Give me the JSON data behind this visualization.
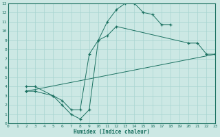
{
  "xlabel": "Humidex (Indice chaleur)",
  "xlim": [
    0,
    23
  ],
  "ylim": [
    0,
    13
  ],
  "xticks": [
    0,
    1,
    2,
    3,
    4,
    5,
    6,
    7,
    8,
    9,
    10,
    11,
    12,
    13,
    14,
    15,
    16,
    17,
    18,
    19,
    20,
    21,
    22,
    23
  ],
  "yticks": [
    0,
    1,
    2,
    3,
    4,
    5,
    6,
    7,
    8,
    9,
    10,
    11,
    12,
    13
  ],
  "bg_color": "#cce8e4",
  "grid_color": "#a8d4d0",
  "line_color": "#1a7060",
  "line1_x": [
    2,
    3,
    5,
    6,
    7,
    8,
    9,
    10,
    11,
    12,
    13,
    14,
    15,
    16,
    17,
    18
  ],
  "line1_y": [
    3.5,
    3.5,
    3.0,
    2.0,
    1.0,
    0.5,
    1.5,
    9.0,
    11.0,
    12.3,
    13.0,
    13.0,
    12.0,
    11.8,
    10.7,
    10.7
  ],
  "line2_x": [
    2,
    3,
    5,
    6,
    7,
    8,
    9,
    10,
    11,
    12,
    20,
    21,
    22,
    23
  ],
  "line2_y": [
    4.0,
    4.0,
    3.0,
    2.5,
    1.5,
    1.5,
    7.5,
    9.0,
    9.5,
    10.5,
    8.7,
    8.7,
    7.5,
    7.5
  ],
  "line3_x": [
    2,
    23
  ],
  "line3_y": [
    3.5,
    7.5
  ],
  "figsize": [
    3.2,
    2.0
  ],
  "dpi": 100
}
